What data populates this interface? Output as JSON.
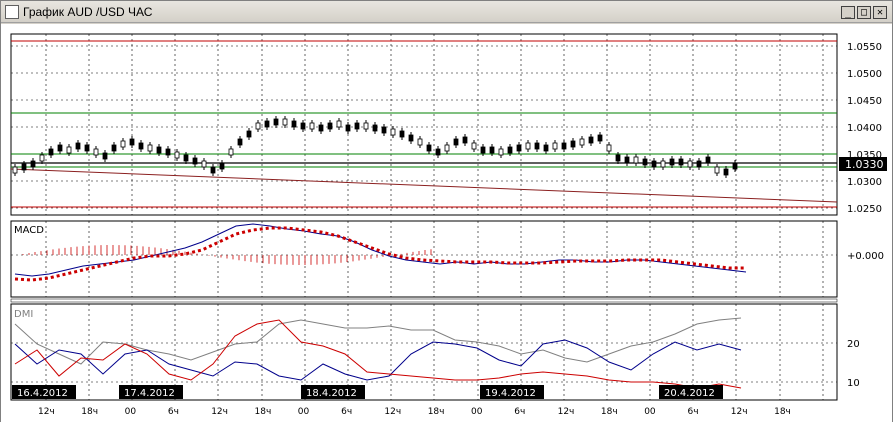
{
  "window": {
    "title": "График AUD /USD  ЧАС",
    "min_symbol": "_",
    "max_symbol": "□",
    "close_symbol": "✕"
  },
  "price_panel": {
    "axis_labels": [
      "1.0550",
      "1.0500",
      "1.0450",
      "1.0400",
      "1.0350",
      "1.0300",
      "1.0250"
    ],
    "current_price": "1.0330"
  },
  "macd_panel": {
    "label": "MACD",
    "axis_label": "+0.000"
  },
  "dmi_panel": {
    "label": "DMI",
    "axis_labels": [
      "20",
      "10"
    ]
  },
  "date_labels": [
    "16.4.2012",
    "17.4.2012",
    "18.4.2012",
    "19.4.2012",
    "20.4.2012"
  ],
  "hour_labels": [
    "12ч",
    "18ч",
    "00",
    "6ч",
    "12ч",
    "18ч",
    "00",
    "6ч",
    "12ч",
    "18ч",
    "00",
    "6ч",
    "12ч",
    "18ч",
    "00",
    "6ч",
    "12ч",
    "18ч"
  ],
  "colors": {
    "candle": "#000000",
    "support_green": "#008000",
    "resistance_red": "#c00000",
    "trend_brown": "#8b2020",
    "macd_line": "#00008b",
    "macd_signal": "#cc0000",
    "macd_hist": "#cc0000",
    "dmi_plus": "#00008b",
    "dmi_minus": "#cc0000",
    "adx": "#808080"
  }
}
